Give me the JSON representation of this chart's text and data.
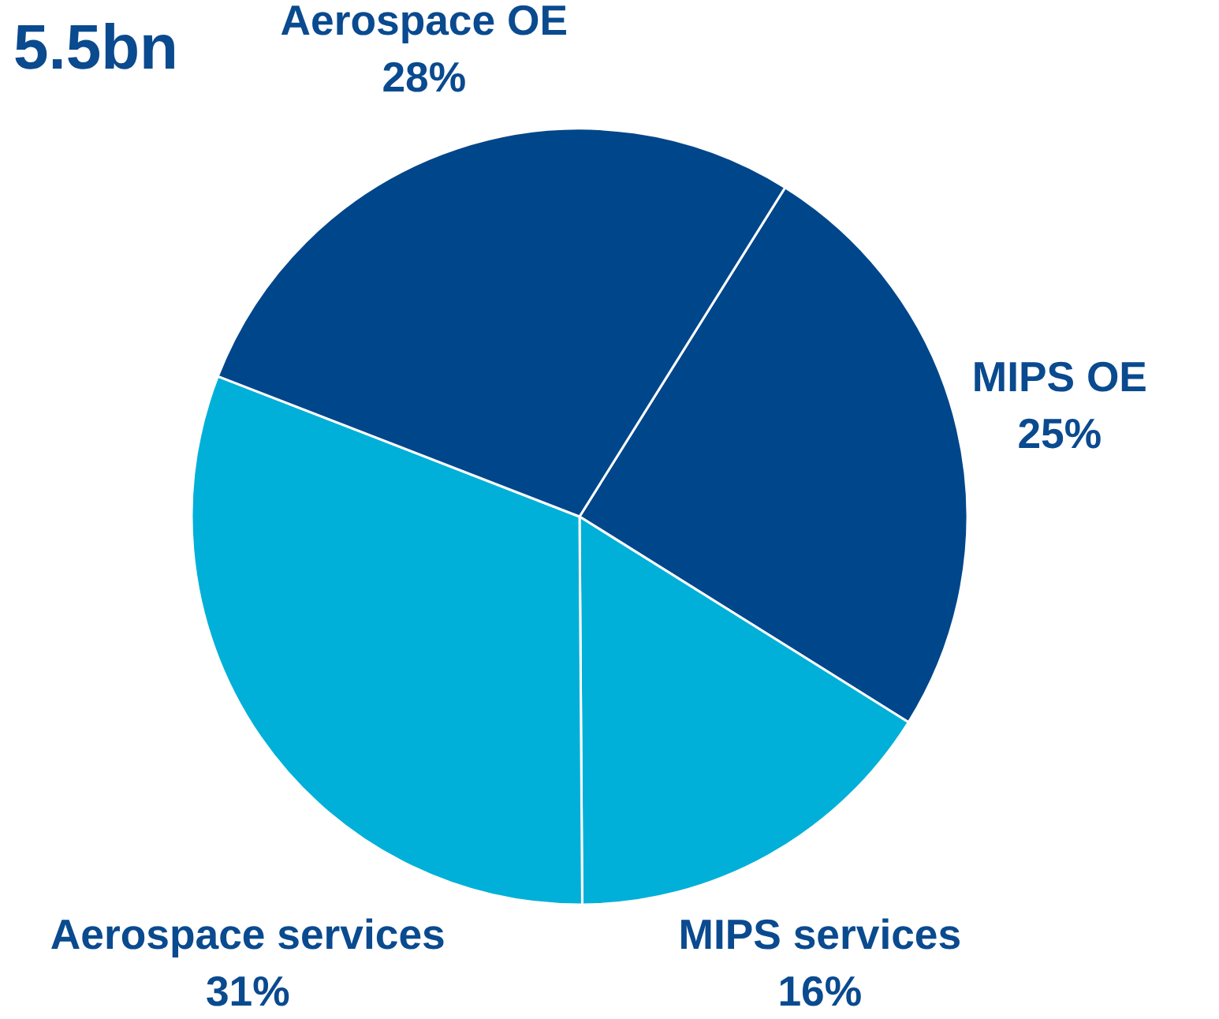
{
  "chart_data": {
    "type": "pie",
    "title": "5.5bn",
    "categories": [
      "MIPS OE",
      "MIPS services",
      "Aerospace services",
      "Aerospace OE"
    ],
    "values": [
      25,
      16,
      31,
      28
    ],
    "value_labels": [
      "25%",
      "16%",
      "31%",
      "28%"
    ],
    "colors": [
      "#00468b",
      "#00b0d8",
      "#00b0d8",
      "#00468b"
    ]
  }
}
